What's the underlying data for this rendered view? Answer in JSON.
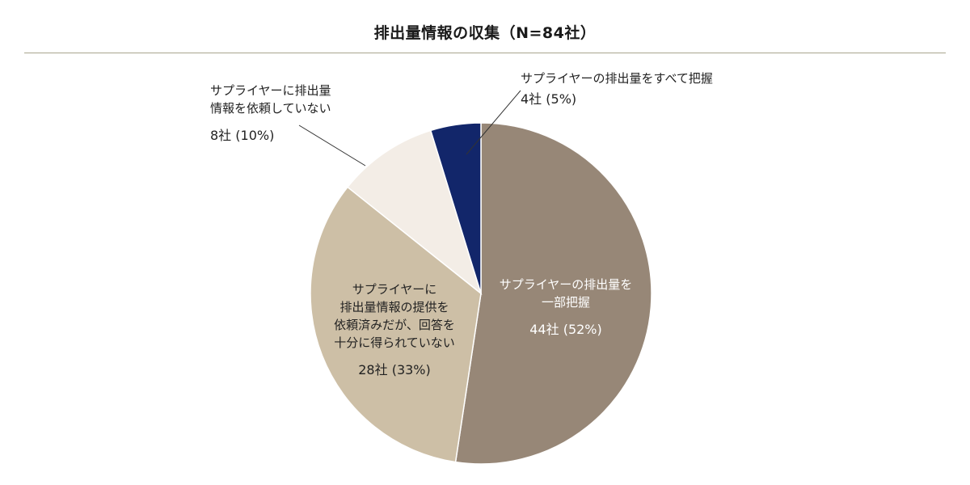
{
  "chart_data": {
    "type": "pie",
    "title": "排出量情報の収集（N=84社）",
    "start_angle_deg": 0,
    "direction": "clockwise",
    "slices": [
      {
        "label_lines": [
          "サプライヤーの排出量を",
          "一部把握"
        ],
        "value": 44,
        "value_label": "44社 (52%)",
        "color": "#978777"
      },
      {
        "label_lines": [
          "サプライヤーに",
          "排出量情報の提供を",
          "依頼済みだが、回答を",
          "十分に得られていない"
        ],
        "value": 28,
        "value_label": "28社 (33%)",
        "color": "#cdbfa6"
      },
      {
        "label_lines": [
          "サプライヤーに排出量",
          "情報を依頼していない"
        ],
        "value": 8,
        "value_label": "8社 (10%)",
        "color": "#f3ede6"
      },
      {
        "label_lines": [
          "サプライヤーの排出量をすべて把握"
        ],
        "value": 4,
        "value_label": "4社 (5%)",
        "color": "#12266a"
      }
    ]
  }
}
